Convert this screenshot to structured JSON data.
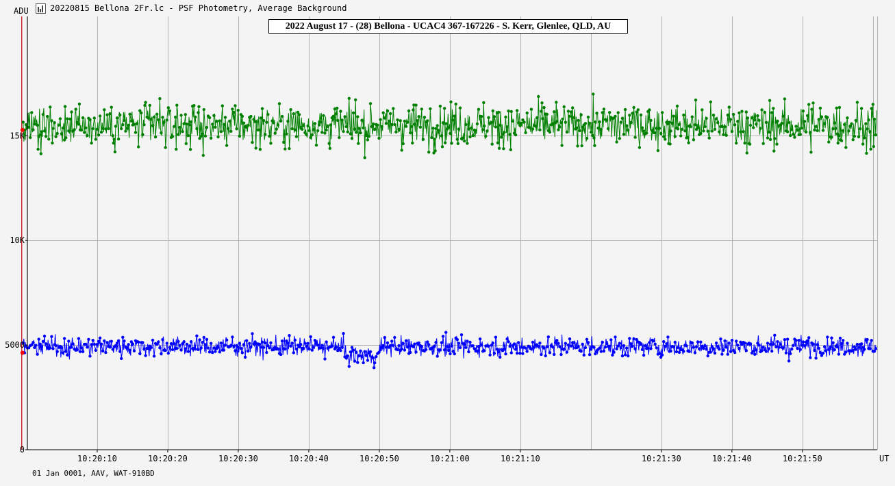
{
  "window": {
    "title": "20220815 Bellona 2Fr.lc - PSF Photometry, Average Background"
  },
  "footer": {
    "text": "01 Jan 0001, AAV, WAT-910BD"
  },
  "chart_data": {
    "type": "line",
    "title": "2022 August 17 - (28) Bellona - UCAC4 367-167226 - S. Kerr, Glenlee, QLD, AU",
    "ylabel": "ADU",
    "xlabel": "UT",
    "y_ticks": [
      {
        "value": 0,
        "label": "0"
      },
      {
        "value": 5000,
        "label": "5000"
      },
      {
        "value": 10000,
        "label": "10K"
      },
      {
        "value": 15000,
        "label": "15K"
      }
    ],
    "ylim": [
      0,
      20700
    ],
    "x_ticks": [
      "10:20:10",
      "10:20:20",
      "10:20:30",
      "10:20:40",
      "10:20:50",
      "10:21:00",
      "10:21:10",
      "10:21:30",
      "10:21:40",
      "10:21:50"
    ],
    "x_tick_seconds": [
      10,
      20,
      30,
      40,
      50,
      60,
      70,
      90,
      100,
      110
    ],
    "x_grid_seconds": [
      0,
      10,
      20,
      30,
      40,
      50,
      60,
      70,
      80,
      90,
      100,
      110,
      120
    ],
    "xlim_seconds": [
      0.1,
      120.6
    ],
    "xlim_start_label": "10:20:00",
    "grid": true,
    "marker_line_seconds": -0.7,
    "colors": {
      "series_1": "#008000",
      "series_2": "#0000ff",
      "marker": "#ff0000",
      "marker_line": "#c00000",
      "grid": "#b4b4b4"
    },
    "series": [
      {
        "color": "#008000",
        "mean": 15500,
        "scatter": 700,
        "min": 12900,
        "max": 18100,
        "point_count": 1200,
        "segments": []
      },
      {
        "color": "#0000ff",
        "mean": 4930,
        "scatter": 330,
        "min": 3300,
        "max": 6500,
        "point_count": 1200,
        "segments": [
          {
            "from_seconds": 45.0,
            "to_seconds": 50.0,
            "mean": 4500
          }
        ]
      }
    ]
  }
}
